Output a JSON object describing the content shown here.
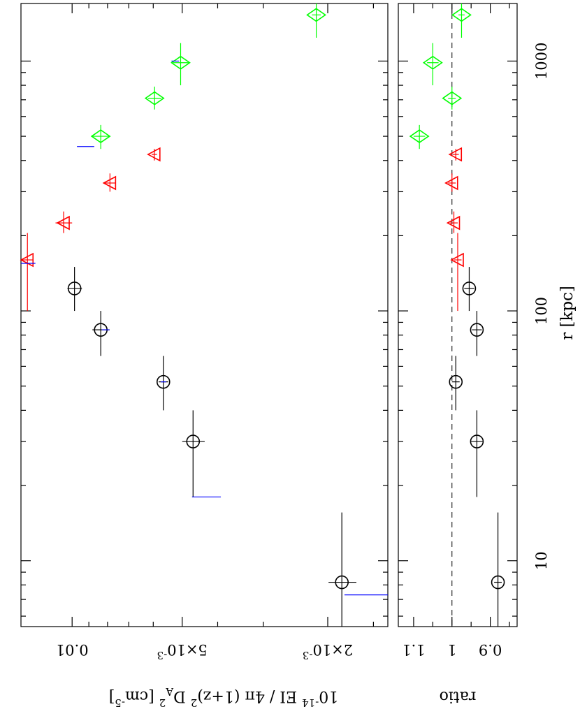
{
  "chart_data": [
    {
      "panel": "main",
      "type": "scatter",
      "xaxis": {
        "label": "r [kpc]",
        "scale": "log",
        "range": [
          5.45,
          1700
        ],
        "ticks": [
          {
            "value": 10,
            "label": "10"
          },
          {
            "value": 100,
            "label": "100"
          },
          {
            "value": 1000,
            "label": "1000"
          }
        ]
      },
      "yaxis": {
        "label": "10⁻¹⁴ EI / 4π (1+z)² Dₐ² [cm⁻⁵]",
        "label_parts": [
          {
            "text": "10",
            "sup": false,
            "sub": false
          },
          {
            "text": "-14",
            "sup": true,
            "sub": false
          },
          {
            "text": " EI / 4π (1+z)",
            "sup": false,
            "sub": false
          },
          {
            "text": "2",
            "sup": true,
            "sub": false
          },
          {
            "text": " D",
            "sup": false,
            "sub": false
          },
          {
            "text": "A",
            "sup": false,
            "sub": true
          },
          {
            "text": "2",
            "sup": true,
            "sub": false
          },
          {
            "text": " [cm",
            "sup": false,
            "sub": false
          },
          {
            "text": "-5",
            "sup": true,
            "sub": false
          },
          {
            "text": "]",
            "sup": false,
            "sub": false
          }
        ],
        "scale": "log",
        "range": [
          0.00137,
          0.0138
        ],
        "ticks": [
          {
            "value": 0.01,
            "text": "0.01",
            "exp": ""
          },
          {
            "value": 0.005,
            "text": "5×10",
            "exp": "-3"
          },
          {
            "value": 0.002,
            "text": "2×10",
            "exp": "-3"
          }
        ]
      },
      "series": [
        {
          "marker": "circle",
          "color": "#000000",
          "points": [
            {
              "r": 8.2,
              "y": 0.00183,
              "y_err": 0.00016,
              "r_lo": 5.45,
              "r_hi": 15.6
            },
            {
              "r": 30,
              "y": 0.00467,
              "y_err": 0.00033,
              "r_lo": 18,
              "r_hi": 40
            },
            {
              "r": 52,
              "y": 0.00563,
              "y_err": 0.00017,
              "r_lo": 40,
              "r_hi": 66
            },
            {
              "r": 84,
              "y": 0.00835,
              "y_err": 0.00045,
              "r_lo": 66,
              "r_hi": 100
            },
            {
              "r": 123,
              "y": 0.00985,
              "y_err": 0.00045,
              "r_lo": 100,
              "r_hi": 150
            }
          ]
        },
        {
          "marker": "triangle",
          "color": "#ff0000",
          "points": [
            {
              "r": 160,
              "y": 0.01325,
              "y_err": 0.00045,
              "r_lo": 100,
              "r_hi": 205
            },
            {
              "r": 225,
              "y": 0.01055,
              "y_err": 0.00055,
              "r_lo": 205,
              "r_hi": 250
            },
            {
              "r": 325,
              "y": 0.00788,
              "y_err": 0.00025,
              "r_lo": 300,
              "r_hi": 355
            },
            {
              "r": 423,
              "y": 0.00596,
              "y_err": 0.0001,
              "r_lo": 400,
              "r_hi": 445
            }
          ]
        },
        {
          "marker": "diamond",
          "color": "#00ff00",
          "points": [
            {
              "r": 500,
              "y": 0.00835,
              "y_err": 0.00045,
              "r_lo": 445,
              "r_hi": 555
            },
            {
              "r": 710,
              "y": 0.00595,
              "y_err": 0.00025,
              "r_lo": 640,
              "r_hi": 790
            },
            {
              "r": 985,
              "y": 0.00505,
              "y_err": 0.00025,
              "r_lo": 800,
              "r_hi": 1180
            },
            {
              "r": 1530,
              "y": 0.00215,
              "y_err": 6e-05,
              "r_lo": 1240,
              "r_hi": 1700
            }
          ]
        },
        {
          "marker": "line",
          "color": "#0000ff",
          "segments": [
            {
              "r": 7.3,
              "y_lo": 0.00137,
              "y_hi": 0.0018
            },
            {
              "r": 18,
              "y_lo": 0.00392,
              "y_hi": 0.0047
            },
            {
              "r": 52,
              "y_lo": 0.00553,
              "y_hi": 0.00572
            },
            {
              "r": 84,
              "y_lo": 0.0079,
              "y_hi": 0.0083
            },
            {
              "r": 155,
              "y_lo": 0.0126,
              "y_hi": 0.0138
            },
            {
              "r": 455,
              "y_lo": 0.0087,
              "y_hi": 0.0097
            },
            {
              "r": 1000,
              "y_lo": 0.0051,
              "y_hi": 0.00535
            }
          ]
        }
      ]
    },
    {
      "panel": "ratio",
      "type": "scatter",
      "xaxis": {
        "label": "r [kpc]",
        "scale": "log",
        "range": [
          5.45,
          1700
        ]
      },
      "yaxis": {
        "label": "ratio",
        "range": [
          0.83,
          1.14
        ],
        "ticks": [
          {
            "value": 0.9,
            "label": "0.9"
          },
          {
            "value": 1,
            "label": "1"
          },
          {
            "value": 1.1,
            "label": "1.1"
          }
        ],
        "reference_line": 1
      },
      "series": [
        {
          "marker": "circle",
          "color": "#000000",
          "points": [
            {
              "r": 8.2,
              "ratio": 0.88,
              "err": 0.01,
              "r_lo": 5.45,
              "r_hi": 15.6
            },
            {
              "r": 30,
              "ratio": 0.935,
              "err": 0.015,
              "r_lo": 18,
              "r_hi": 40
            },
            {
              "r": 52,
              "ratio": 0.99,
              "err": 0.01,
              "r_lo": 40,
              "r_hi": 66
            },
            {
              "r": 84,
              "ratio": 0.935,
              "err": 0.013,
              "r_lo": 66,
              "r_hi": 100
            },
            {
              "r": 123,
              "ratio": 0.955,
              "err": 0.013,
              "r_lo": 100,
              "r_hi": 150
            }
          ]
        },
        {
          "marker": "triangle",
          "color": "#ff0000",
          "points": [
            {
              "r": 160,
              "ratio": 0.985,
              "err": 0.01,
              "r_lo": 100,
              "r_hi": 205
            },
            {
              "r": 225,
              "ratio": 0.995,
              "err": 0.01,
              "r_lo": 205,
              "r_hi": 250
            },
            {
              "r": 325,
              "ratio": 1.0,
              "err": 0.01,
              "r_lo": 300,
              "r_hi": 355
            },
            {
              "r": 423,
              "ratio": 0.99,
              "err": 0.008,
              "r_lo": 400,
              "r_hi": 445
            }
          ]
        },
        {
          "marker": "diamond",
          "color": "#00ff00",
          "points": [
            {
              "r": 500,
              "ratio": 1.085,
              "err": 0.015,
              "r_lo": 445,
              "r_hi": 555
            },
            {
              "r": 710,
              "ratio": 1.0,
              "err": 0.01,
              "r_lo": 640,
              "r_hi": 790
            },
            {
              "r": 985,
              "ratio": 1.05,
              "err": 0.015,
              "r_lo": 800,
              "r_hi": 1180
            },
            {
              "r": 1530,
              "ratio": 0.975,
              "err": 0.008,
              "r_lo": 1240,
              "r_hi": 1700
            }
          ]
        }
      ]
    }
  ]
}
